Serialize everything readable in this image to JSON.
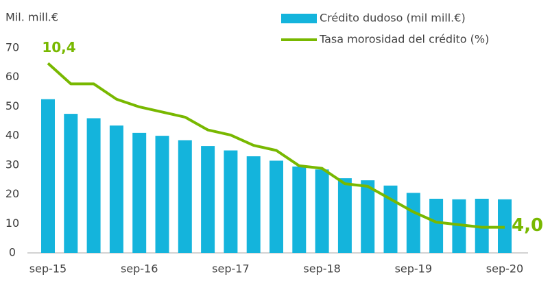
{
  "chart_data": {
    "type": "bar",
    "y_axis_label": "Mil. mill.€",
    "categories": [
      "sep-15",
      null,
      null,
      null,
      "sep-16",
      null,
      null,
      null,
      "sep-17",
      null,
      null,
      null,
      "sep-18",
      null,
      null,
      null,
      "sep-19",
      null,
      null,
      null,
      "sep-20"
    ],
    "series": [
      {
        "name": "Crédito dudoso (mil mill.€)",
        "type": "bar",
        "color": "#14b4dc",
        "axis": "y",
        "values": [
          52.5,
          47.5,
          46,
          43.5,
          41,
          40,
          38.5,
          36.5,
          35,
          33,
          31.5,
          29.5,
          28.5,
          25.5,
          24.8,
          23,
          20.5,
          18.5,
          18.3,
          18.5,
          18.3
        ]
      },
      {
        "name": "Tasa morosidad del crédito (%)",
        "type": "line",
        "color": "#78b800",
        "axis": "y2",
        "values": [
          10.4,
          9.6,
          9.6,
          9.0,
          8.7,
          8.5,
          8.3,
          7.8,
          7.6,
          7.2,
          7.0,
          6.4,
          6.3,
          5.7,
          5.6,
          5.1,
          4.6,
          4.2,
          4.1,
          4.0,
          4.0
        ],
        "value_labels": [
          "10,4",
          null,
          null,
          null,
          null,
          null,
          null,
          null,
          null,
          null,
          null,
          null,
          null,
          null,
          null,
          null,
          null,
          null,
          null,
          null,
          "4,0"
        ]
      }
    ],
    "ylim": [
      0,
      70
    ],
    "yticks": [
      0,
      10,
      20,
      30,
      40,
      50,
      60,
      70
    ],
    "y2lim": [
      3,
      11
    ],
    "grid": false,
    "legend": "top-right"
  }
}
